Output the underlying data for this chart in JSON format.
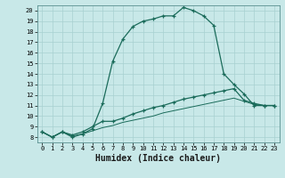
{
  "xlabel": "Humidex (Indice chaleur)",
  "ylabel": "",
  "background_color": "#c8e8e8",
  "line_color": "#1a6b5a",
  "grid_color": "#a8d0d0",
  "xlim": [
    -0.5,
    23.5
  ],
  "ylim": [
    7.5,
    20.5
  ],
  "xticks": [
    0,
    1,
    2,
    3,
    4,
    5,
    6,
    7,
    8,
    9,
    10,
    11,
    12,
    13,
    14,
    15,
    16,
    17,
    18,
    19,
    20,
    21,
    22,
    23
  ],
  "yticks": [
    8,
    9,
    10,
    11,
    12,
    13,
    14,
    15,
    16,
    17,
    18,
    19,
    20
  ],
  "line1_x": [
    0,
    1,
    2,
    3,
    4,
    5,
    6,
    7,
    8,
    9,
    10,
    11,
    12,
    13,
    14,
    15,
    16,
    17,
    18,
    19,
    20,
    21,
    22,
    23
  ],
  "line1_y": [
    8.5,
    8.0,
    8.5,
    8.0,
    8.3,
    8.8,
    11.2,
    15.2,
    17.3,
    18.5,
    19.0,
    19.2,
    19.5,
    19.5,
    20.3,
    20.0,
    19.5,
    18.6,
    14.0,
    13.0,
    12.1,
    11.0,
    11.0,
    11.0
  ],
  "line2_x": [
    0,
    1,
    2,
    3,
    4,
    5,
    6,
    7,
    8,
    9,
    10,
    11,
    12,
    13,
    14,
    15,
    16,
    17,
    18,
    19,
    20,
    21,
    22,
    23
  ],
  "line2_y": [
    8.5,
    8.0,
    8.5,
    8.2,
    8.5,
    9.0,
    9.5,
    9.5,
    9.8,
    10.2,
    10.5,
    10.8,
    11.0,
    11.3,
    11.6,
    11.8,
    12.0,
    12.2,
    12.4,
    12.6,
    11.5,
    11.2,
    11.0,
    11.0
  ],
  "line3_x": [
    0,
    1,
    2,
    3,
    4,
    5,
    6,
    7,
    8,
    9,
    10,
    11,
    12,
    13,
    14,
    15,
    16,
    17,
    18,
    19,
    20,
    21,
    22,
    23
  ],
  "line3_y": [
    8.5,
    8.0,
    8.5,
    8.1,
    8.3,
    8.6,
    8.9,
    9.1,
    9.4,
    9.6,
    9.8,
    10.0,
    10.3,
    10.5,
    10.7,
    10.9,
    11.1,
    11.3,
    11.5,
    11.7,
    11.4,
    11.1,
    11.0,
    11.0
  ],
  "xlabel_fontsize": 7,
  "tick_fontsize": 5,
  "xlabel_bold": true
}
